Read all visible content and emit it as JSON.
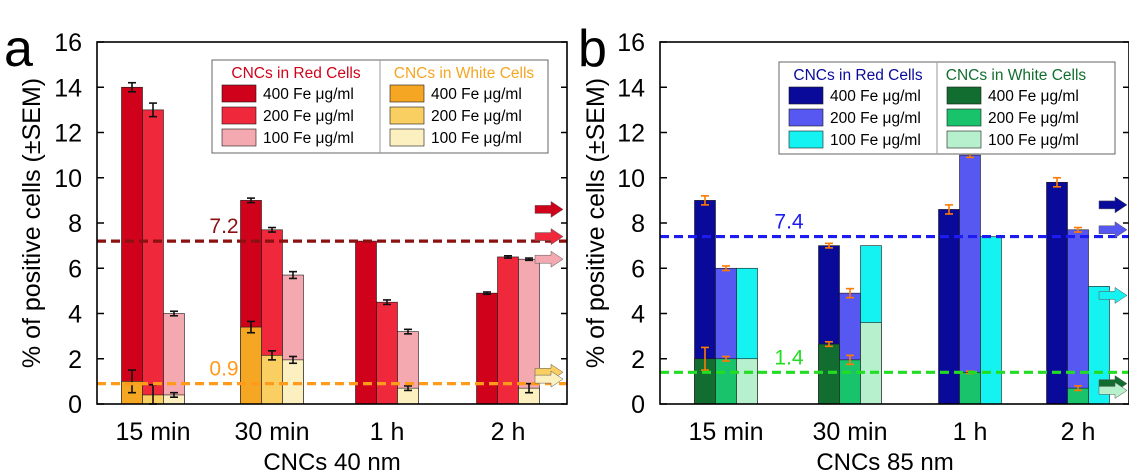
{
  "colors": {
    "red_400": "#d0021b",
    "red_200": "#f0283c",
    "red_100": "#f4a8b0",
    "orange_400": "#f5a623",
    "orange_200": "#f8cf60",
    "orange_100": "#fcefc0",
    "blue_400": "#0a0a9a",
    "blue_200": "#5757f2",
    "blue_100": "#14f2f2",
    "green_400": "#126e30",
    "green_200": "#19c36b",
    "green_100": "#b6f0cc",
    "line_dark_red": "#8b1010",
    "line_orange": "#ff9a1a",
    "line_blue": "#1c1cf0",
    "line_green": "#22dd22",
    "err_black": "#111111",
    "err_orange": "#ff7a00"
  },
  "chart_data": [
    {
      "panel_label": "a",
      "type": "bar",
      "ylabel": "% of positive cells (±SEM)",
      "xlabel": "CNCs 40 nm",
      "ylim": [
        0,
        16
      ],
      "yticks": [
        0,
        2,
        4,
        6,
        8,
        10,
        12,
        14,
        16
      ],
      "categories": [
        "15 min",
        "30 min",
        "1 h",
        "2 h"
      ],
      "legend": {
        "placement": "top-right",
        "group_titles": [
          "CNCs in Red Cells",
          "CNCs in White Cells"
        ],
        "labels": [
          "400 Fe μg/ml",
          "200 Fe μg/ml",
          "100 Fe μg/ml"
        ]
      },
      "series": [
        {
          "name": "CNCs in Red Cells 400 Fe μg/ml",
          "color_key": "red_400",
          "values": [
            14.0,
            9.0,
            7.2,
            4.9
          ],
          "errors": [
            0.2,
            0.1,
            0.0,
            0.05
          ],
          "err_color_key": "err_black"
        },
        {
          "name": "CNCs in Red Cells 200 Fe μg/ml",
          "color_key": "red_200",
          "values": [
            13.0,
            7.7,
            4.5,
            6.5
          ],
          "errors": [
            0.3,
            0.1,
            0.1,
            0.05
          ],
          "err_color_key": "err_black"
        },
        {
          "name": "CNCs in Red Cells 100 Fe μg/ml",
          "color_key": "red_100",
          "values": [
            4.0,
            5.7,
            3.2,
            6.4
          ],
          "errors": [
            0.1,
            0.15,
            0.1,
            0.05
          ],
          "err_color_key": "err_black"
        },
        {
          "name": "CNCs in White Cells 400 Fe μg/ml",
          "color_key": "orange_400",
          "values": [
            1.0,
            3.4,
            0.0,
            0.0
          ],
          "errors": [
            0.5,
            0.25,
            0.0,
            0.0
          ],
          "err_color_key": "err_black"
        },
        {
          "name": "CNCs in White Cells 200 Fe μg/ml",
          "color_key": "orange_200",
          "values": [
            0.4,
            2.15,
            0.0,
            0.0
          ],
          "errors": [
            0.45,
            0.2,
            0.0,
            0.0
          ],
          "err_color_key": "err_black"
        },
        {
          "name": "CNCs in White Cells 100 Fe μg/ml",
          "color_key": "orange_100",
          "values": [
            0.4,
            1.95,
            0.7,
            0.7
          ],
          "errors": [
            0.1,
            0.15,
            0.1,
            0.2
          ],
          "err_color_key": "err_black"
        }
      ],
      "reference_lines": [
        {
          "value": 7.2,
          "label": "7.2",
          "color_key": "line_dark_red"
        },
        {
          "value": 0.9,
          "label": "0.9",
          "color_key": "line_orange"
        }
      ],
      "arrows": [
        {
          "value": 8.6,
          "color_key": "red_400"
        },
        {
          "value": 7.4,
          "color_key": "red_200"
        },
        {
          "value": 6.4,
          "color_key": "red_100"
        },
        {
          "value": 1.4,
          "color_key": "orange_200"
        },
        {
          "value": 1.1,
          "color_key": "orange_100"
        }
      ]
    },
    {
      "panel_label": "b",
      "type": "bar",
      "ylabel": "% of positive cells (±SEM)",
      "xlabel": "CNCs 85 nm",
      "ylim": [
        0,
        16
      ],
      "yticks": [
        0,
        2,
        4,
        6,
        8,
        10,
        12,
        14,
        16
      ],
      "categories": [
        "15 min",
        "30 min",
        "1 h",
        "2 h"
      ],
      "legend": {
        "placement": "top-right",
        "group_titles": [
          "CNCs in Red Cells",
          "CNCs in White Cells"
        ],
        "labels": [
          "400 Fe μg/ml",
          "200 Fe μg/ml",
          "100 Fe μg/ml"
        ]
      },
      "series": [
        {
          "name": "CNCs in Red Cells 400 Fe μg/ml",
          "color_key": "blue_400",
          "values": [
            9.0,
            7.0,
            8.6,
            9.8
          ],
          "errors": [
            0.2,
            0.1,
            0.2,
            0.2
          ],
          "err_color_key": "err_orange"
        },
        {
          "name": "CNCs in Red Cells 200 Fe μg/ml",
          "color_key": "blue_200",
          "values": [
            6.0,
            4.9,
            11.0,
            7.7
          ],
          "errors": [
            0.1,
            0.2,
            0.1,
            0.1
          ],
          "err_color_key": "err_orange"
        },
        {
          "name": "CNCs in Red Cells 100 Fe μg/ml",
          "color_key": "blue_100",
          "values": [
            6.0,
            7.0,
            7.4,
            5.2
          ],
          "errors": [
            0.0,
            0.0,
            0.0,
            0.0
          ],
          "err_color_key": "err_orange"
        },
        {
          "name": "CNCs in White Cells 400 Fe μg/ml",
          "color_key": "green_400",
          "values": [
            2.0,
            2.65,
            0.0,
            0.0
          ],
          "errors": [
            0.5,
            0.1,
            0.0,
            0.0
          ],
          "err_color_key": "err_orange"
        },
        {
          "name": "CNCs in White Cells 200 Fe μg/ml",
          "color_key": "green_200",
          "values": [
            2.0,
            1.95,
            1.4,
            0.7
          ],
          "errors": [
            0.1,
            0.2,
            0.05,
            0.1
          ],
          "err_color_key": "err_orange"
        },
        {
          "name": "CNCs in White Cells 100 Fe μg/ml",
          "color_key": "green_100",
          "values": [
            2.0,
            3.6,
            0.0,
            0.0
          ],
          "errors": [
            0.0,
            0.0,
            0.0,
            0.0
          ],
          "err_color_key": "err_orange"
        }
      ],
      "reference_lines": [
        {
          "value": 7.4,
          "label": "7.4",
          "color_key": "line_blue"
        },
        {
          "value": 1.4,
          "label": "1.4",
          "color_key": "line_green"
        }
      ],
      "arrows": [
        {
          "value": 8.8,
          "color_key": "blue_400"
        },
        {
          "value": 7.7,
          "color_key": "blue_200"
        },
        {
          "value": 4.8,
          "color_key": "blue_100"
        },
        {
          "value": 0.9,
          "color_key": "green_400"
        },
        {
          "value": 0.6,
          "color_key": "green_100"
        }
      ]
    }
  ]
}
